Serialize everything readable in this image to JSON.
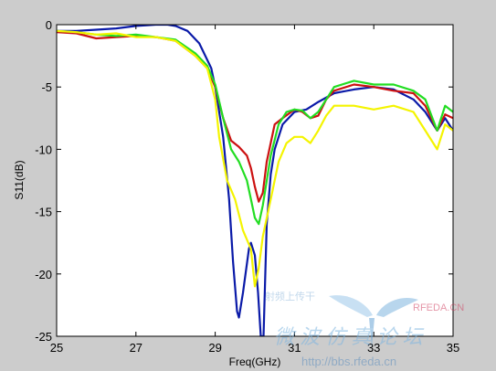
{
  "chart_data": {
    "type": "line",
    "xlabel": "Freq(GHz)",
    "ylabel": "S11(dB)",
    "xlim": [
      25,
      35
    ],
    "ylim": [
      -25,
      0
    ],
    "x_ticks": [
      "25",
      "27",
      "29",
      "31",
      "33",
      "35"
    ],
    "y_ticks": [
      "0",
      "-5",
      "-10",
      "-15",
      "-20",
      "-25"
    ],
    "grid": false,
    "legend": "none",
    "series": [
      {
        "color": "#0a1aa8",
        "x": [
          25,
          25.5,
          26,
          26.5,
          27,
          27.5,
          27.8,
          28.0,
          28.3,
          28.6,
          28.9,
          29.0,
          29.2,
          29.35,
          29.45,
          29.55,
          29.6,
          29.7,
          29.85,
          29.9,
          30.0,
          30.08,
          30.15,
          30.22,
          30.3,
          30.4,
          30.5,
          30.7,
          31.0,
          31.3,
          31.6,
          32.0,
          32.5,
          33.0,
          33.5,
          34.0,
          34.3,
          34.6,
          34.8,
          35.0
        ],
        "values": [
          -0.5,
          -0.5,
          -0.4,
          -0.3,
          -0.1,
          0,
          0,
          -0.1,
          -0.5,
          -1.5,
          -3.5,
          -5.0,
          -9.0,
          -14.0,
          -19.0,
          -23.0,
          -23.5,
          -21.5,
          -18.0,
          -17.5,
          -18.5,
          -21.5,
          -25,
          -25,
          -16.0,
          -12.0,
          -10.0,
          -8.0,
          -7.0,
          -6.8,
          -6.2,
          -5.5,
          -5.2,
          -5.0,
          -5.2,
          -6.0,
          -7.0,
          -8.5,
          -7.5,
          -8.5
        ]
      },
      {
        "color": "#cc1111",
        "x": [
          25,
          25.5,
          26,
          26.5,
          27,
          27.5,
          28.0,
          28.5,
          28.8,
          29.0,
          29.2,
          29.4,
          29.6,
          29.8,
          29.9,
          30.0,
          30.1,
          30.2,
          30.3,
          30.5,
          30.7,
          31.0,
          31.2,
          31.4,
          31.6,
          31.8,
          32.0,
          32.5,
          33.0,
          33.5,
          34.0,
          34.3,
          34.6,
          34.8,
          35.0
        ],
        "values": [
          -0.6,
          -0.7,
          -1.1,
          -1.0,
          -0.9,
          -1.0,
          -1.3,
          -2.5,
          -3.5,
          -5.0,
          -7.5,
          -9.3,
          -9.8,
          -10.5,
          -11.5,
          -13.0,
          -14.2,
          -13.5,
          -11.0,
          -8.0,
          -7.5,
          -6.8,
          -7.0,
          -7.5,
          -7.3,
          -6.0,
          -5.3,
          -4.8,
          -5.0,
          -5.3,
          -5.5,
          -6.5,
          -8.5,
          -7.2,
          -7.5
        ]
      },
      {
        "color": "#22dd22",
        "x": [
          25,
          25.5,
          26,
          26.5,
          27,
          27.5,
          28.0,
          28.5,
          28.8,
          29.0,
          29.2,
          29.4,
          29.6,
          29.8,
          29.9,
          30.0,
          30.1,
          30.2,
          30.4,
          30.6,
          30.8,
          31.0,
          31.2,
          31.4,
          31.6,
          31.8,
          32.0,
          32.5,
          33.0,
          33.5,
          34.0,
          34.3,
          34.6,
          34.8,
          35.0
        ],
        "values": [
          -0.5,
          -0.6,
          -0.8,
          -0.9,
          -0.8,
          -1.0,
          -1.2,
          -2.3,
          -3.3,
          -4.8,
          -7.5,
          -10.0,
          -11.0,
          -12.5,
          -14.0,
          -15.5,
          -16.0,
          -14.5,
          -10.5,
          -8.0,
          -7.0,
          -6.8,
          -6.9,
          -7.5,
          -7.0,
          -6.0,
          -5.0,
          -4.5,
          -4.8,
          -4.8,
          -5.3,
          -6.0,
          -8.5,
          -6.5,
          -7.0
        ]
      },
      {
        "color": "#f4f400",
        "x": [
          25,
          25.5,
          26,
          26.5,
          27,
          27.5,
          28.0,
          28.5,
          28.8,
          29.0,
          29.1,
          29.3,
          29.5,
          29.7,
          29.9,
          30.0,
          30.1,
          30.2,
          30.4,
          30.6,
          30.8,
          31.0,
          31.2,
          31.4,
          31.6,
          31.8,
          32.0,
          32.5,
          33.0,
          33.5,
          34.0,
          34.3,
          34.6,
          34.8,
          35.0
        ],
        "values": [
          -0.5,
          -0.6,
          -0.8,
          -0.7,
          -1.0,
          -1.0,
          -1.3,
          -2.5,
          -3.5,
          -6.0,
          -9.0,
          -12.5,
          -14.0,
          -16.5,
          -18.0,
          -21.0,
          -19.5,
          -17.0,
          -14.0,
          -11.0,
          -9.5,
          -9.0,
          -9.0,
          -9.5,
          -8.5,
          -7.3,
          -6.5,
          -6.5,
          -6.8,
          -6.5,
          -7.0,
          -8.5,
          -10.0,
          -8.0,
          -8.5
        ]
      }
    ]
  },
  "watermark": {
    "brand": "RFEDA.CN",
    "subtitle": "微 波 仿 真 论 坛",
    "url": "http://bbs.rfeda.cn",
    "tagline": "射频上传干",
    "logo_color": "#7fb6e0"
  }
}
